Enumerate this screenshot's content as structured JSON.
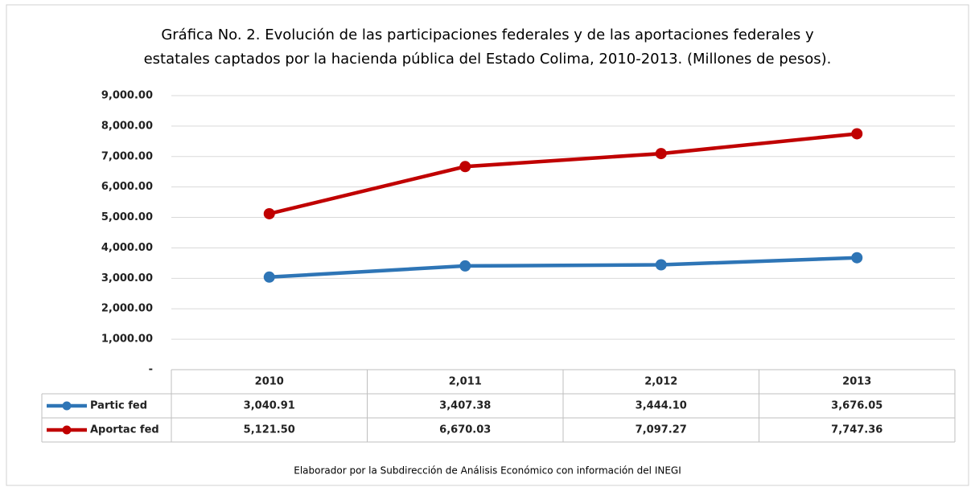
{
  "chart_data": {
    "type": "line",
    "title": [
      "Gráfica No. 2. Evolución de las participaciones federales y de las aportaciones federales y",
      "estatales captados por la hacienda pública del Estado Colima, 2010-2013. (Millones de pesos)."
    ],
    "source": "Elaborador por la Subdirección de Análisis Económico con información del INEGI",
    "categories": [
      "2010",
      "2,011",
      "2,012",
      "2013"
    ],
    "series": [
      {
        "name": "Partic fed",
        "color": "#2e75b6",
        "values": [
          3040.91,
          3407.38,
          3444.1,
          3676.05
        ],
        "value_labels": [
          "3,040.91",
          "3,407.38",
          "3,444.10",
          "3,676.05"
        ]
      },
      {
        "name": "Aportac fed",
        "color": "#c00000",
        "values": [
          5121.5,
          6670.03,
          7097.27,
          7747.36
        ],
        "value_labels": [
          "5,121.50",
          "6,670.03",
          "7,097.27",
          "7,747.36"
        ]
      }
    ],
    "ylim": [
      0,
      9000
    ],
    "yticks": [
      {
        "value": 0,
        "label": "-"
      },
      {
        "value": 1000,
        "label": "1,000.00"
      },
      {
        "value": 2000,
        "label": "2,000.00"
      },
      {
        "value": 3000,
        "label": "3,000.00"
      },
      {
        "value": 4000,
        "label": "4,000.00"
      },
      {
        "value": 5000,
        "label": "5,000.00"
      },
      {
        "value": 6000,
        "label": "6,000.00"
      },
      {
        "value": 7000,
        "label": "7,000.00"
      },
      {
        "value": 8000,
        "label": "8,000.00"
      },
      {
        "value": 9000,
        "label": "9,000.00"
      }
    ],
    "grid": true
  }
}
